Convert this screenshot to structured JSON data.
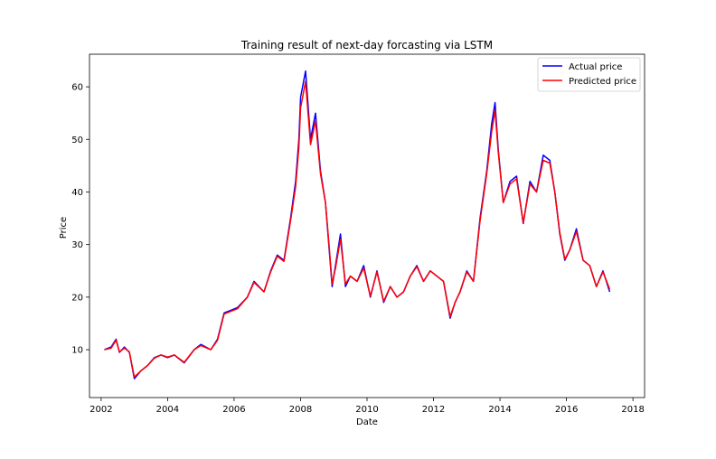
{
  "chart_data": {
    "type": "line",
    "title": "Training result of next-day forcasting via LSTM",
    "xlabel": "Date",
    "ylabel": "Price",
    "xlim": [
      2001.65,
      2018.35
    ],
    "ylim": [
      0.9,
      66.2
    ],
    "xticks": [
      2002,
      2004,
      2006,
      2008,
      2010,
      2012,
      2014,
      2016,
      2018
    ],
    "yticks": [
      10,
      20,
      30,
      40,
      50,
      60
    ],
    "grid": false,
    "legend_position": "top-right",
    "series": [
      {
        "name": "Actual price",
        "color": "#0000ff",
        "x": [
          2002.1,
          2002.3,
          2002.45,
          2002.55,
          2002.7,
          2002.85,
          2003.0,
          2003.2,
          2003.4,
          2003.6,
          2003.8,
          2004.0,
          2004.2,
          2004.5,
          2004.8,
          2005.0,
          2005.3,
          2005.5,
          2005.7,
          2005.9,
          2006.1,
          2006.4,
          2006.6,
          2006.9,
          2007.1,
          2007.3,
          2007.5,
          2007.7,
          2007.85,
          2007.95,
          2008.0,
          2008.15,
          2008.3,
          2008.45,
          2008.6,
          2008.75,
          2008.85,
          2008.95,
          2009.05,
          2009.2,
          2009.35,
          2009.5,
          2009.7,
          2009.9,
          2010.1,
          2010.3,
          2010.5,
          2010.7,
          2010.9,
          2011.1,
          2011.3,
          2011.5,
          2011.7,
          2011.9,
          2012.1,
          2012.3,
          2012.5,
          2012.65,
          2012.8,
          2013.0,
          2013.2,
          2013.4,
          2013.6,
          2013.75,
          2013.85,
          2013.95,
          2014.1,
          2014.3,
          2014.5,
          2014.7,
          2014.9,
          2015.1,
          2015.3,
          2015.5,
          2015.65,
          2015.8,
          2015.95,
          2016.1,
          2016.3,
          2016.5,
          2016.7,
          2016.9,
          2017.1,
          2017.3
        ],
        "y": [
          10,
          10.5,
          12,
          9.5,
          10.5,
          9.5,
          4.5,
          6,
          7,
          8.5,
          9,
          8.5,
          9,
          7.5,
          10,
          11,
          10,
          12,
          17,
          17.5,
          18,
          20,
          23,
          21,
          25,
          28,
          27,
          35,
          42,
          50,
          58,
          63,
          50,
          55,
          44,
          38,
          30,
          22,
          26,
          32,
          22,
          24,
          23,
          26,
          20,
          25,
          19,
          22,
          20,
          21,
          24,
          26,
          23,
          25,
          24,
          23,
          16,
          19,
          21,
          25,
          23,
          35,
          44,
          53,
          57,
          48,
          38,
          42,
          43,
          34,
          42,
          40,
          47,
          46,
          40,
          32,
          27,
          29,
          33,
          27,
          26,
          22,
          25,
          21
        ]
      },
      {
        "name": "Predicted price",
        "color": "#ff0000",
        "x": [
          2002.1,
          2002.3,
          2002.45,
          2002.55,
          2002.7,
          2002.85,
          2003.0,
          2003.2,
          2003.4,
          2003.6,
          2003.8,
          2004.0,
          2004.2,
          2004.5,
          2004.8,
          2005.0,
          2005.3,
          2005.5,
          2005.7,
          2005.9,
          2006.1,
          2006.4,
          2006.6,
          2006.9,
          2007.1,
          2007.3,
          2007.5,
          2007.7,
          2007.85,
          2007.95,
          2008.0,
          2008.15,
          2008.3,
          2008.45,
          2008.6,
          2008.75,
          2008.85,
          2008.95,
          2009.05,
          2009.2,
          2009.35,
          2009.5,
          2009.7,
          2009.9,
          2010.1,
          2010.3,
          2010.5,
          2010.7,
          2010.9,
          2011.1,
          2011.3,
          2011.5,
          2011.7,
          2011.9,
          2012.1,
          2012.3,
          2012.5,
          2012.65,
          2012.8,
          2013.0,
          2013.2,
          2013.4,
          2013.6,
          2013.75,
          2013.85,
          2013.95,
          2014.1,
          2014.3,
          2014.5,
          2014.7,
          2014.9,
          2015.1,
          2015.3,
          2015.5,
          2015.65,
          2015.8,
          2015.95,
          2016.1,
          2016.3,
          2016.5,
          2016.7,
          2016.9,
          2017.1,
          2017.3
        ],
        "y": [
          10,
          10.3,
          11.8,
          9.6,
          10.3,
          9.6,
          4.8,
          6,
          7,
          8.4,
          9,
          8.6,
          9,
          7.6,
          10,
          10.8,
          10,
          11.8,
          16.8,
          17.3,
          17.8,
          20,
          22.8,
          21,
          24.8,
          27.8,
          26.8,
          34.5,
          41,
          48.5,
          56,
          61,
          49,
          53.5,
          43.5,
          38,
          30.5,
          22.5,
          25.5,
          31,
          22.5,
          24,
          23,
          25.5,
          20.2,
          24.8,
          19.2,
          22,
          20,
          21,
          24,
          25.8,
          23,
          25,
          24,
          23,
          16.3,
          19,
          21,
          24.8,
          23,
          34.5,
          43.5,
          51.5,
          55.5,
          47.5,
          38,
          41.5,
          42.5,
          34.2,
          41.5,
          40,
          46,
          45.5,
          40,
          32.3,
          27.2,
          29,
          32.5,
          27,
          26,
          22,
          24.8,
          21.5
        ]
      }
    ]
  }
}
